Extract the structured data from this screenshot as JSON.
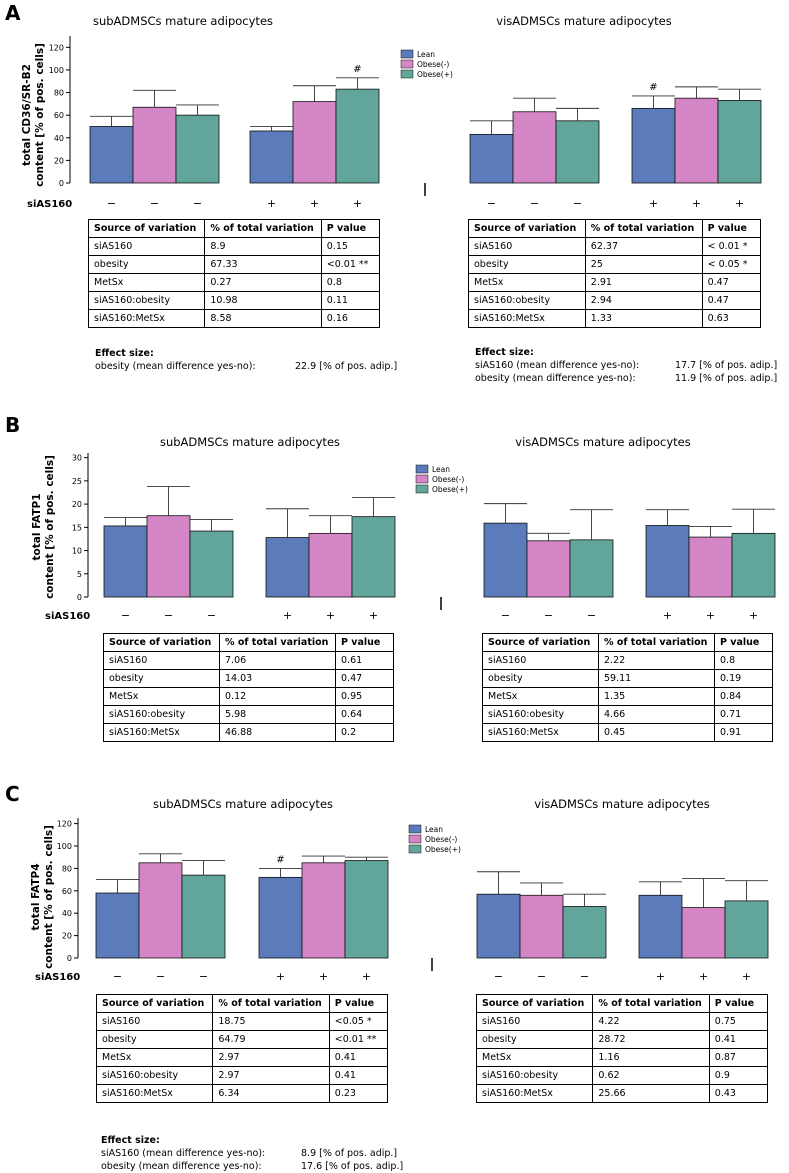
{
  "legend": [
    "Lean",
    "Obese(-)",
    "Obese(+)"
  ],
  "colors": {
    "lean": "#5b7bba",
    "obese_minus": "#d385c6",
    "obese_plus": "#61a59b"
  },
  "table_headers": [
    "Source of variation",
    "% of total variation",
    "P value"
  ],
  "effect_heading": "Effect size:",
  "chart_data": [
    {
      "panel": "A",
      "type": "bar",
      "group_label": "siAS160",
      "ylabel": [
        "total CD36/SR-B2",
        "content [% of pos. cells]"
      ],
      "ylim": [
        0,
        130
      ],
      "yticks": [
        0,
        20,
        40,
        60,
        80,
        100,
        120
      ],
      "subplots": [
        {
          "title": "subADMSCs mature adipocytes",
          "groups": [
            {
              "sign": [
                "−",
                "−",
                "−"
              ],
              "values": [
                50,
                67,
                60
              ],
              "errors": [
                9,
                15,
                9
              ],
              "marks": [
                "",
                "",
                ""
              ]
            },
            {
              "sign": [
                "+",
                "+",
                "+"
              ],
              "values": [
                46,
                72,
                83
              ],
              "errors": [
                4,
                14,
                10
              ],
              "marks": [
                "",
                "",
                "#"
              ]
            }
          ]
        },
        {
          "title": "visADMSCs mature adipocytes",
          "groups": [
            {
              "sign": [
                "−",
                "−",
                "−"
              ],
              "values": [
                43,
                63,
                55
              ],
              "errors": [
                12,
                12,
                11
              ],
              "marks": [
                "",
                "",
                ""
              ]
            },
            {
              "sign": [
                "+",
                "+",
                "+"
              ],
              "values": [
                66,
                75,
                73
              ],
              "errors": [
                11,
                10,
                10
              ],
              "marks": [
                "#",
                "",
                ""
              ]
            }
          ]
        }
      ],
      "tables": [
        {
          "rows": [
            [
              "siAS160",
              "8.9",
              "0.15"
            ],
            [
              "obesity",
              "67.33",
              "<0.01 **"
            ],
            [
              "MetSx",
              "0.27",
              "0.8"
            ],
            [
              "siAS160:obesity",
              "10.98",
              "0.11"
            ],
            [
              "siAS160:MetSx",
              "8.58",
              "0.16"
            ]
          ],
          "effects": [
            [
              "obesity (mean difference yes-no):",
              "22.9 [% of pos. adip.]"
            ]
          ]
        },
        {
          "rows": [
            [
              "siAS160",
              "62.37",
              "< 0.01 *"
            ],
            [
              "obesity",
              "25",
              "< 0.05 *"
            ],
            [
              "MetSx",
              "2.91",
              "0.47"
            ],
            [
              "siAS160:obesity",
              "2.94",
              "0.47"
            ],
            [
              "siAS160:MetSx",
              "1.33",
              "0.63"
            ]
          ],
          "effects": [
            [
              "siAS160 (mean difference yes-no):",
              "17.7 [% of pos. adip.]"
            ],
            [
              "obesity (mean difference yes-no):",
              "11.9 [% of pos. adip.]"
            ]
          ]
        }
      ]
    },
    {
      "panel": "B",
      "type": "bar",
      "group_label": "siAS160",
      "ylabel": [
        "total FATP1",
        "content [% of pos. cells]"
      ],
      "ylim": [
        0,
        31
      ],
      "yticks": [
        0,
        5,
        10,
        15,
        20,
        25,
        30
      ],
      "subplots": [
        {
          "title": "subADMSCs mature adipocytes",
          "groups": [
            {
              "sign": [
                "−",
                "−",
                "−"
              ],
              "values": [
                15.3,
                17.5,
                14.2
              ],
              "errors": [
                1.8,
                6.3,
                2.5
              ],
              "marks": [
                "",
                "",
                ""
              ]
            },
            {
              "sign": [
                "+",
                "+",
                "+"
              ],
              "values": [
                12.8,
                13.7,
                17.3
              ],
              "errors": [
                6.2,
                3.8,
                4.1
              ],
              "marks": [
                "",
                "",
                ""
              ]
            }
          ]
        },
        {
          "title": "visADMSCs mature adipocytes",
          "groups": [
            {
              "sign": [
                "−",
                "−",
                "−"
              ],
              "values": [
                15.9,
                12.1,
                12.3
              ],
              "errors": [
                4.2,
                1.6,
                6.5
              ],
              "marks": [
                "",
                "",
                ""
              ]
            },
            {
              "sign": [
                "+",
                "+",
                "+"
              ],
              "values": [
                15.4,
                12.9,
                13.7
              ],
              "errors": [
                3.4,
                2.3,
                5.2
              ],
              "marks": [
                "",
                "",
                ""
              ]
            }
          ]
        }
      ],
      "tables": [
        {
          "rows": [
            [
              "siAS160",
              "7.06",
              "0.61"
            ],
            [
              "obesity",
              "14.03",
              "0.47"
            ],
            [
              "MetSx",
              "0.12",
              "0.95"
            ],
            [
              "siAS160:obesity",
              "5.98",
              "0.64"
            ],
            [
              "siAS160:MetSx",
              "46.88",
              "0.2"
            ]
          ],
          "effects": []
        },
        {
          "rows": [
            [
              "siAS160",
              "2.22",
              "0.8"
            ],
            [
              "obesity",
              "59.11",
              "0.19"
            ],
            [
              "MetSx",
              "1.35",
              "0.84"
            ],
            [
              "siAS160:obesity",
              "4.66",
              "0.71"
            ],
            [
              "siAS160:MetSx",
              "0.45",
              "0.91"
            ]
          ],
          "effects": []
        }
      ]
    },
    {
      "panel": "C",
      "type": "bar",
      "group_label": "siAS160",
      "ylabel": [
        "total FATP4",
        "content [% of pos. cells]"
      ],
      "ylim": [
        0,
        125
      ],
      "yticks": [
        0,
        20,
        40,
        60,
        80,
        100,
        120
      ],
      "subplots": [
        {
          "title": "subADMSCs mature adipocytes",
          "groups": [
            {
              "sign": [
                "−",
                "−",
                "−"
              ],
              "values": [
                58,
                85,
                74
              ],
              "errors": [
                12,
                8,
                13
              ],
              "marks": [
                "",
                "",
                ""
              ]
            },
            {
              "sign": [
                "+",
                "+",
                "+"
              ],
              "values": [
                72,
                85,
                87
              ],
              "errors": [
                8,
                6,
                3
              ],
              "marks": [
                "#",
                "",
                ""
              ]
            }
          ]
        },
        {
          "title": "visADMSCs mature adipocytes",
          "groups": [
            {
              "sign": [
                "−",
                "−",
                "−"
              ],
              "values": [
                57,
                56,
                46
              ],
              "errors": [
                20,
                11,
                11
              ],
              "marks": [
                "",
                "",
                ""
              ]
            },
            {
              "sign": [
                "+",
                "+",
                "+"
              ],
              "values": [
                56,
                45,
                51
              ],
              "errors": [
                12,
                26,
                18
              ],
              "marks": [
                "",
                "",
                ""
              ]
            }
          ]
        }
      ],
      "tables": [
        {
          "rows": [
            [
              "siAS160",
              "18.75",
              "<0.05 *"
            ],
            [
              "obesity",
              "64.79",
              "<0.01 **"
            ],
            [
              "MetSx",
              "2.97",
              "0.41"
            ],
            [
              "siAS160:obesity",
              "2.97",
              "0.41"
            ],
            [
              "siAS160:MetSx",
              "6.34",
              "0.23"
            ]
          ],
          "effects": [
            [
              "siAS160 (mean difference yes-no):",
              "8.9 [% of pos. adip.]"
            ],
            [
              "obesity (mean difference yes-no):",
              "17.6 [% of pos. adip.]"
            ]
          ]
        },
        {
          "rows": [
            [
              "siAS160",
              "4.22",
              "0.75"
            ],
            [
              "obesity",
              "28.72",
              "0.41"
            ],
            [
              "MetSx",
              "1.16",
              "0.87"
            ],
            [
              "siAS160:obesity",
              "0.62",
              "0.9"
            ],
            [
              "siAS160:MetSx",
              "25.66",
              "0.43"
            ]
          ],
          "effects": []
        }
      ]
    }
  ]
}
